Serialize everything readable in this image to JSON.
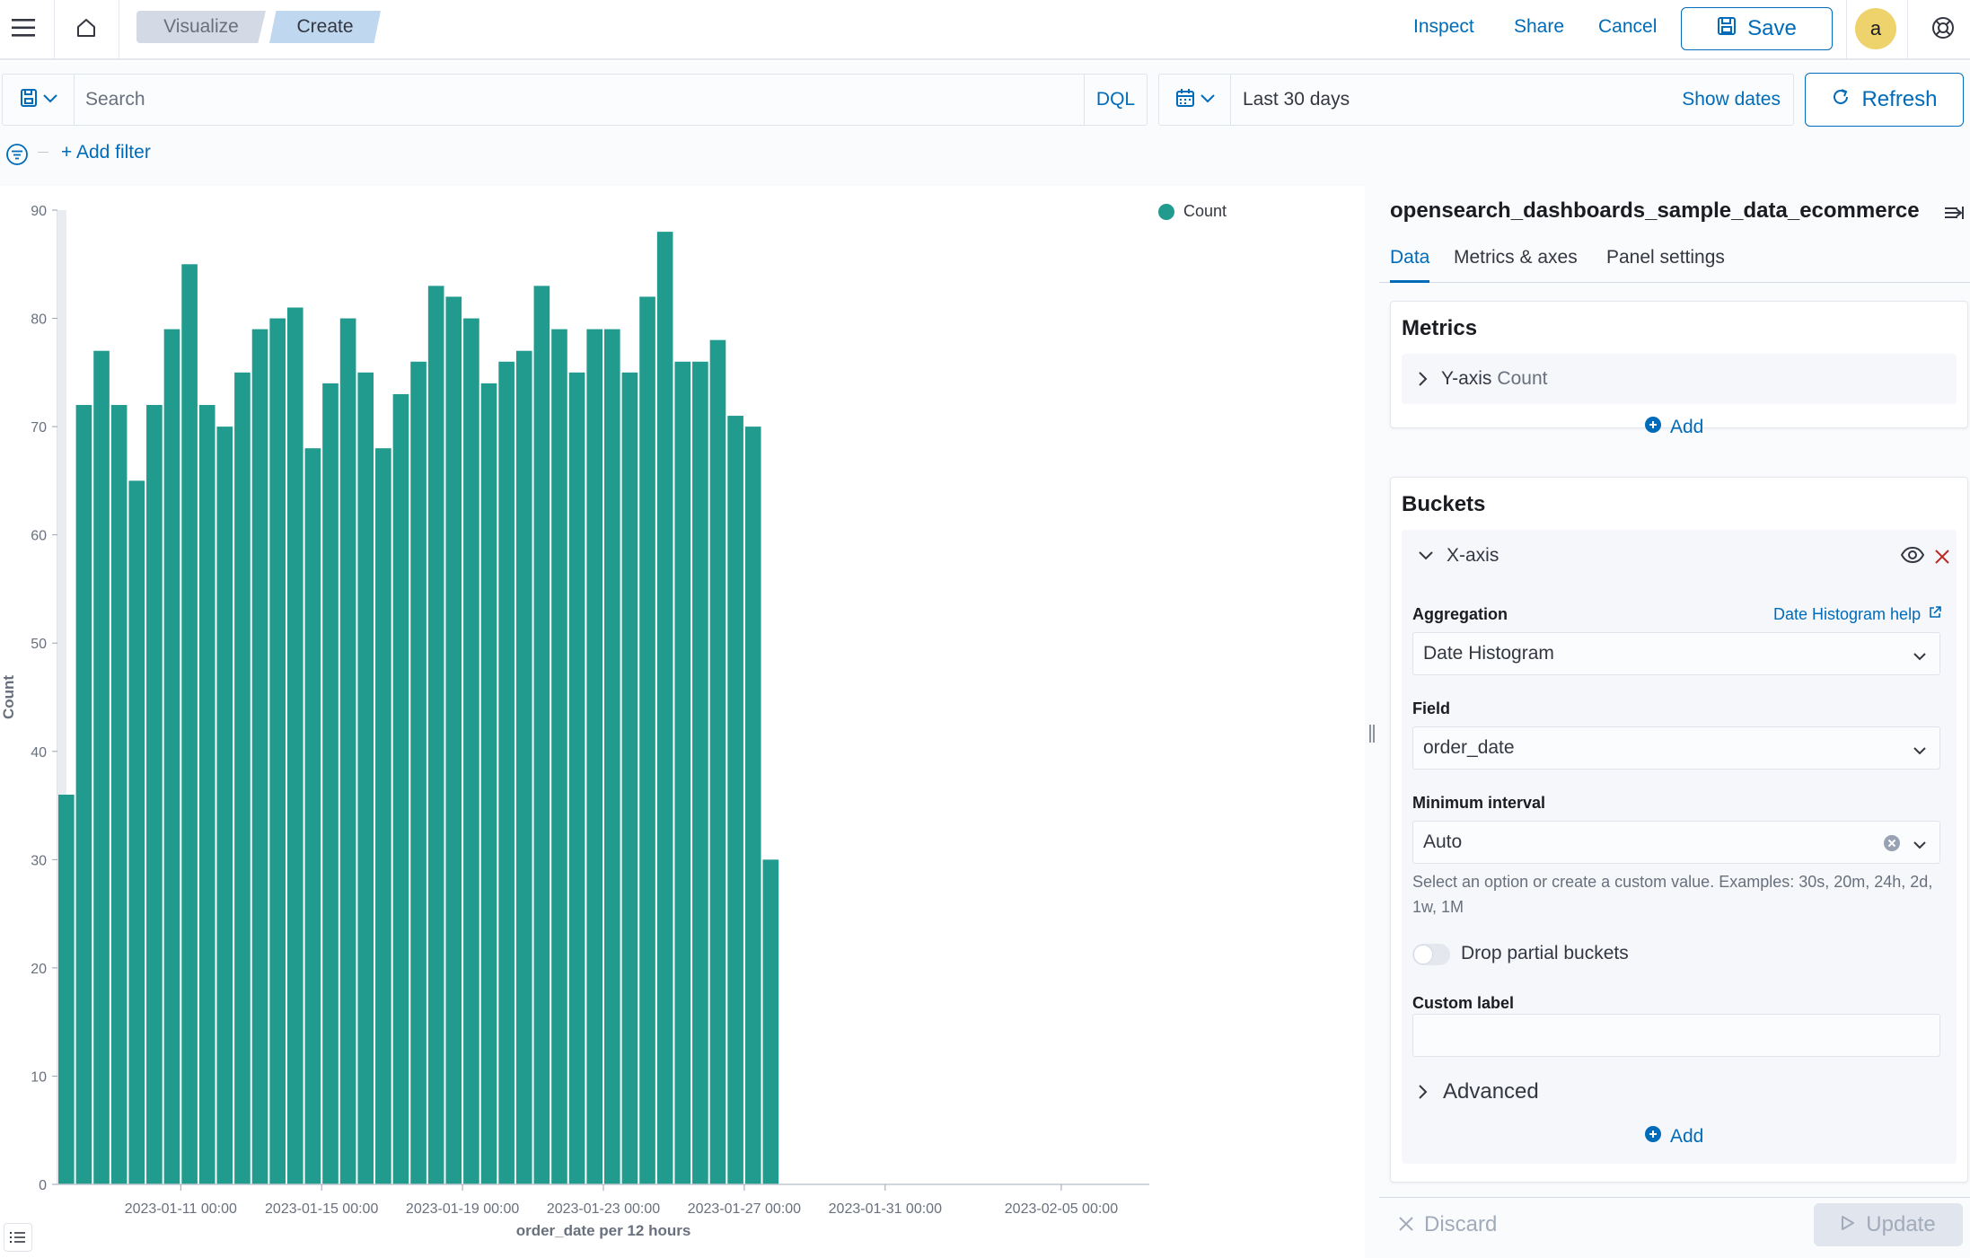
{
  "header": {
    "breadcrumbs": [
      {
        "label": "Visualize"
      },
      {
        "label": "Create"
      }
    ],
    "links": {
      "inspect": "Inspect",
      "share": "Share",
      "cancel": "Cancel"
    },
    "save_label": "Save",
    "avatar_initial": "a",
    "icons": {
      "menu": "menu-icon",
      "home": "home-icon",
      "save": "save-icon",
      "help": "help-icon"
    }
  },
  "query_bar": {
    "search_placeholder": "Search",
    "language": "DQL",
    "date_range": "Last 30 days",
    "show_dates": "Show dates",
    "refresh_label": "Refresh"
  },
  "filters": {
    "add_filter": "+ Add filter"
  },
  "chart_data": {
    "type": "bar",
    "title": "",
    "xlabel": "order_date per 12 hours",
    "ylabel": "Count",
    "ylim": [
      0,
      90
    ],
    "yticks": [
      0,
      10,
      20,
      30,
      40,
      50,
      60,
      70,
      80,
      90
    ],
    "x_start": "2023-01-07 12:00",
    "x_interval_hours": 12,
    "xlim": [
      "2023-01-07 12:00",
      "2023-02-07 12:00"
    ],
    "xticks": [
      "2023-01-11 00:00",
      "2023-01-15 00:00",
      "2023-01-19 00:00",
      "2023-01-23 00:00",
      "2023-01-27 00:00",
      "2023-01-31 00:00",
      "2023-02-05 00:00"
    ],
    "series": [
      {
        "name": "Count",
        "color": "#209b8e",
        "values": [
          36,
          72,
          77,
          72,
          65,
          72,
          79,
          85,
          72,
          70,
          75,
          79,
          80,
          81,
          68,
          74,
          80,
          75,
          68,
          73,
          76,
          83,
          82,
          80,
          74,
          76,
          77,
          83,
          79,
          75,
          79,
          79,
          75,
          82,
          88,
          76,
          76,
          78,
          71,
          70,
          30
        ]
      }
    ],
    "legend": "top-right",
    "grid": false
  },
  "sidebar": {
    "index_title": "opensearch_dashboards_sample_data_ecommerce",
    "tabs": [
      {
        "label": "Data"
      },
      {
        "label": "Metrics & axes"
      },
      {
        "label": "Panel settings"
      }
    ],
    "metrics": {
      "title": "Metrics",
      "item_label": "Y-axis",
      "item_sub": "Count",
      "add": "Add"
    },
    "buckets": {
      "title": "Buckets",
      "item_label": "X-axis",
      "aggregation_label": "Aggregation",
      "aggregation_help": "Date Histogram help",
      "aggregation_value": "Date Histogram",
      "field_label": "Field",
      "field_value": "order_date",
      "interval_label": "Minimum interval",
      "interval_value": "Auto",
      "interval_help": "Select an option or create a custom value. Examples: 30s, 20m, 24h, 2d, 1w, 1M",
      "drop_partial": "Drop partial buckets",
      "custom_label": "Custom label",
      "custom_value": "",
      "advanced": "Advanced",
      "add": "Add"
    },
    "discard": "Discard",
    "update": "Update"
  }
}
